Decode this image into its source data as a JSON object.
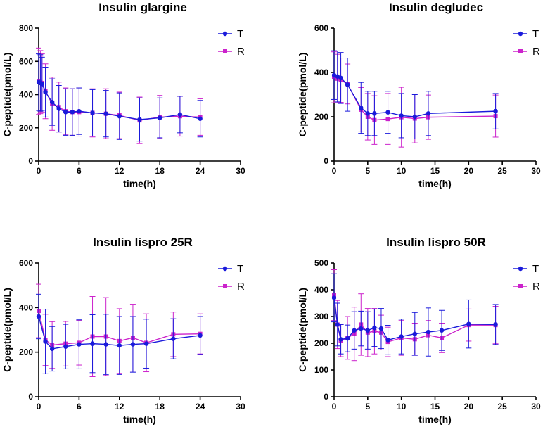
{
  "chart_data": [
    {
      "type": "line",
      "title": "Insulin glargine",
      "xlabel": "time(h)",
      "ylabel": "C-peptide(pmol/L)",
      "xlim": [
        0,
        30
      ],
      "ylim": [
        0,
        800
      ],
      "xticks": [
        0,
        6,
        12,
        18,
        24,
        30
      ],
      "yticks": [
        0,
        200,
        400,
        600,
        800
      ],
      "legend": "top-right",
      "series": [
        {
          "name": "T",
          "color": "#1a1adb",
          "marker": "circle",
          "x": [
            0,
            0.25,
            0.5,
            1,
            2,
            3,
            4,
            5,
            6,
            8,
            10,
            12,
            15,
            18,
            21,
            24
          ],
          "y": [
            475,
            470,
            465,
            415,
            355,
            315,
            295,
            295,
            300,
            290,
            285,
            270,
            250,
            260,
            280,
            255
          ],
          "err": [
            170,
            170,
            160,
            150,
            140,
            140,
            140,
            140,
            140,
            140,
            140,
            140,
            130,
            120,
            110,
            110
          ]
        },
        {
          "name": "R",
          "color": "#cc22cc",
          "marker": "square",
          "x": [
            0,
            0.25,
            0.5,
            1,
            2,
            3,
            4,
            5,
            6,
            8,
            10,
            12,
            15,
            18,
            21,
            24
          ],
          "y": [
            480,
            475,
            470,
            420,
            345,
            325,
            300,
            295,
            295,
            290,
            285,
            275,
            245,
            265,
            270,
            265
          ],
          "err": [
            200,
            190,
            175,
            165,
            160,
            150,
            140,
            140,
            145,
            145,
            150,
            140,
            140,
            130,
            120,
            110
          ]
        }
      ]
    },
    {
      "type": "line",
      "title": "Insulin degludec",
      "xlabel": "time(h)",
      "ylabel": "C-peptide(pmol/L)",
      "xlim": [
        0,
        30
      ],
      "ylim": [
        0,
        600
      ],
      "xticks": [
        0,
        5,
        10,
        15,
        20,
        25,
        30
      ],
      "yticks": [
        0,
        200,
        400,
        600
      ],
      "legend": "top-right",
      "series": [
        {
          "name": "T",
          "color": "#1a1adb",
          "marker": "circle",
          "x": [
            0,
            0.5,
            1,
            2,
            4,
            5,
            6,
            8,
            10,
            12,
            14,
            24
          ],
          "y": [
            388,
            382,
            375,
            345,
            240,
            215,
            215,
            220,
            205,
            200,
            215,
            225
          ],
          "err": [
            110,
            115,
            115,
            120,
            115,
            100,
            100,
            95,
            100,
            100,
            100,
            80
          ]
        },
        {
          "name": "R",
          "color": "#cc22cc",
          "marker": "square",
          "x": [
            0,
            0.5,
            1,
            2,
            4,
            5,
            6,
            8,
            10,
            12,
            14,
            24
          ],
          "y": [
            378,
            372,
            365,
            348,
            232,
            200,
            185,
            190,
            198,
            192,
            198,
            203
          ],
          "err": [
            115,
            110,
            100,
            90,
            100,
            105,
            110,
            115,
            135,
            110,
            100,
            95
          ]
        }
      ]
    },
    {
      "type": "line",
      "title": "Insulin lispro 25R",
      "xlabel": "time(h)",
      "ylabel": "C-peptide(pmol/L)",
      "xlim": [
        0,
        30
      ],
      "ylim": [
        0,
        600
      ],
      "xticks": [
        0,
        6,
        12,
        18,
        24,
        30
      ],
      "yticks": [
        0,
        200,
        400,
        600
      ],
      "legend": "top-right",
      "series": [
        {
          "name": "T",
          "color": "#1a1adb",
          "marker": "circle",
          "x": [
            0,
            1,
            2,
            4,
            6,
            8,
            10,
            12,
            14,
            16,
            20,
            24
          ],
          "y": [
            360,
            248,
            215,
            225,
            235,
            238,
            235,
            230,
            235,
            238,
            260,
            275
          ],
          "err": [
            100,
            145,
            100,
            100,
            110,
            130,
            135,
            130,
            125,
            110,
            90,
            85
          ]
        },
        {
          "name": "R",
          "color": "#cc22cc",
          "marker": "square",
          "x": [
            0,
            1,
            2,
            4,
            6,
            8,
            10,
            12,
            14,
            16,
            20,
            24
          ],
          "y": [
            385,
            255,
            232,
            238,
            242,
            270,
            270,
            250,
            265,
            242,
            280,
            282
          ],
          "err": [
            120,
            115,
            105,
            100,
            100,
            180,
            175,
            145,
            150,
            130,
            100,
            90
          ]
        }
      ]
    },
    {
      "type": "line",
      "title": "Insulin lispro 50R",
      "xlabel": "time(h)",
      "ylabel": "C-peptide(pmol/L)",
      "xlim": [
        0,
        30
      ],
      "ylim": [
        0,
        500
      ],
      "xticks": [
        0,
        5,
        10,
        15,
        20,
        25,
        30
      ],
      "yticks": [
        0,
        100,
        200,
        300,
        400,
        500
      ],
      "legend": "top-right",
      "series": [
        {
          "name": "T",
          "color": "#1a1adb",
          "marker": "circle",
          "x": [
            0,
            0.5,
            1,
            2,
            3,
            4,
            5,
            6,
            7,
            8,
            10,
            12,
            14,
            16,
            20,
            24
          ],
          "y": [
            370,
            270,
            215,
            218,
            248,
            255,
            248,
            258,
            255,
            212,
            225,
            235,
            242,
            248,
            272,
            270
          ],
          "err": [
            90,
            80,
            55,
            50,
            70,
            65,
            70,
            70,
            75,
            55,
            65,
            80,
            90,
            75,
            90,
            75
          ]
        },
        {
          "name": "R",
          "color": "#cc22cc",
          "marker": "square",
          "x": [
            0,
            0.5,
            1,
            2,
            3,
            4,
            5,
            6,
            7,
            8,
            10,
            12,
            14,
            16,
            20,
            24
          ],
          "y": [
            380,
            270,
            210,
            220,
            235,
            270,
            240,
            245,
            240,
            205,
            220,
            215,
            230,
            220,
            268,
            268
          ],
          "err": [
            95,
            90,
            60,
            80,
            100,
            115,
            90,
            85,
            65,
            55,
            65,
            60,
            55,
            55,
            60,
            70
          ]
        }
      ]
    }
  ]
}
